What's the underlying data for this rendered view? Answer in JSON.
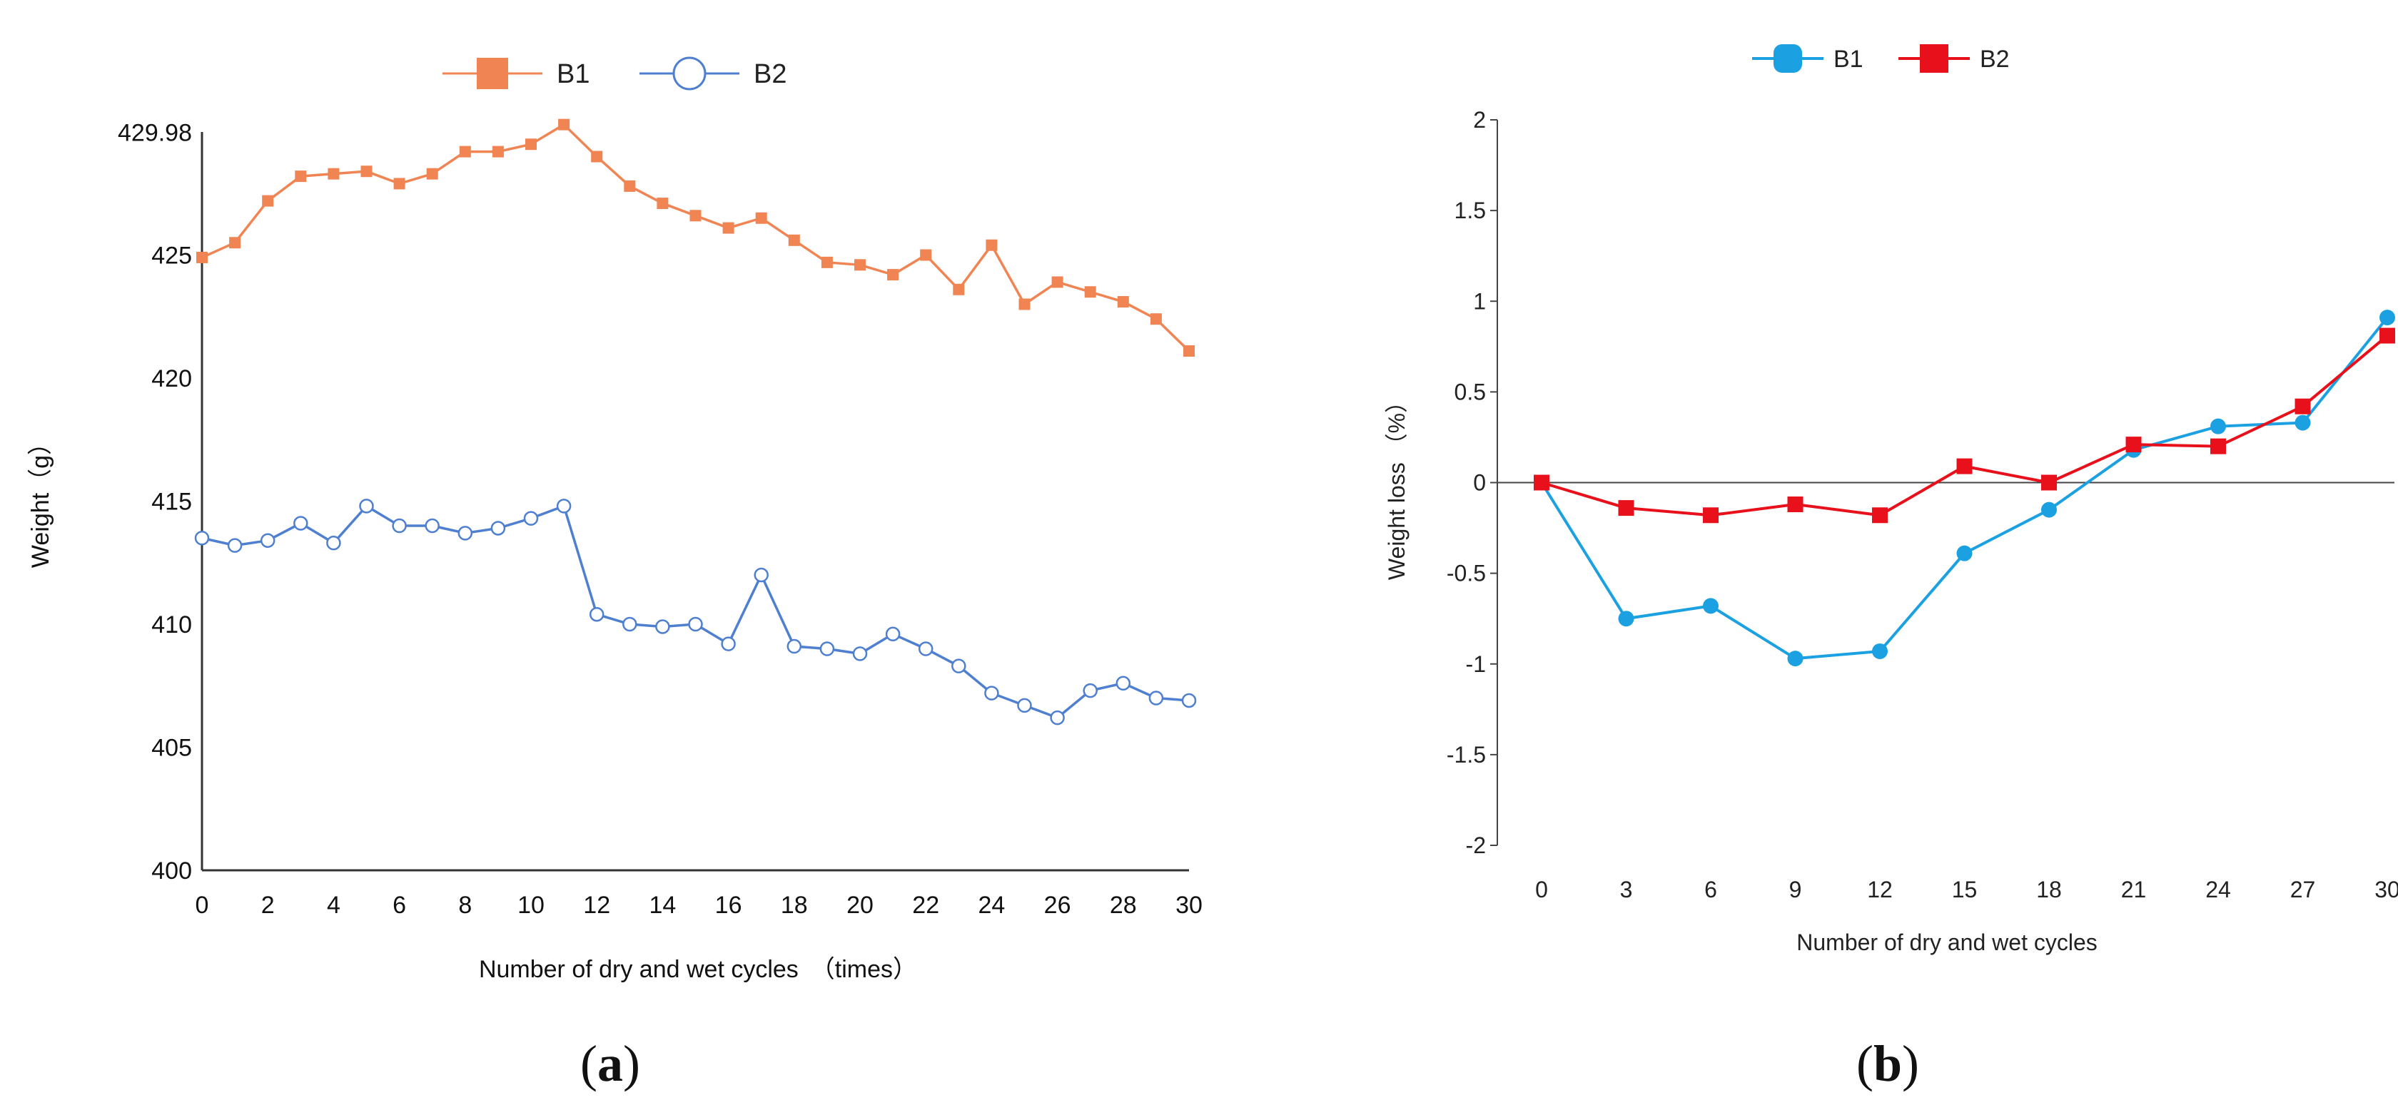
{
  "chart_data": [
    {
      "type": "line",
      "xlabel": "Number of dry and wet cycles　（times）",
      "ylabel": "Weight（g）",
      "xlim": [
        0,
        30
      ],
      "ylim": [
        400,
        430
      ],
      "x_ticks": [
        0,
        2,
        4,
        6,
        8,
        10,
        12,
        14,
        16,
        18,
        20,
        22,
        24,
        26,
        28,
        30
      ],
      "y_ticks": [
        400,
        405,
        410,
        415,
        420,
        425,
        429.98
      ],
      "y_tick_labels": [
        "400",
        "405",
        "410",
        "415",
        "420",
        "425",
        "429.98"
      ],
      "legend_position": "top-center",
      "x": [
        0,
        1,
        2,
        3,
        4,
        5,
        6,
        7,
        8,
        9,
        10,
        11,
        12,
        13,
        14,
        15,
        16,
        17,
        18,
        19,
        20,
        21,
        22,
        23,
        24,
        25,
        26,
        27,
        28,
        29,
        30
      ],
      "series": [
        {
          "name": "B1",
          "color": "#F08453",
          "marker": "square",
          "values": [
            424.9,
            425.5,
            427.2,
            428.2,
            428.3,
            428.4,
            427.9,
            428.3,
            429.2,
            429.2,
            429.5,
            430.3,
            429.0,
            427.8,
            427.1,
            426.6,
            426.1,
            426.5,
            425.6,
            424.7,
            424.6,
            424.2,
            425.0,
            423.6,
            425.4,
            423.0,
            423.9,
            423.5,
            423.1,
            422.4,
            421.1
          ]
        },
        {
          "name": "B2",
          "color": "#4E7FD0",
          "marker": "open-circle",
          "values": [
            413.5,
            413.2,
            413.4,
            414.1,
            413.3,
            414.8,
            414.0,
            414.0,
            413.7,
            413.9,
            414.3,
            414.8,
            410.4,
            410.0,
            409.9,
            410.0,
            409.2,
            412.0,
            409.1,
            409.0,
            408.8,
            409.6,
            409.0,
            408.3,
            407.2,
            406.7,
            406.2,
            407.3,
            407.6,
            407.0,
            406.9
          ]
        }
      ],
      "caption": {
        "open": "(",
        "letter": "a",
        "close": ")"
      }
    },
    {
      "type": "line",
      "xlabel": "Number of dry and wet cycles",
      "ylabel": "Weight loss （%）",
      "ylim": [
        -2,
        2
      ],
      "y_ticks": [
        -2,
        -1.5,
        -1,
        -0.5,
        0,
        0.5,
        1,
        1.5,
        2
      ],
      "y_tick_labels": [
        "-2",
        "-1.5",
        "-1",
        "-0.5",
        "0",
        "0.5",
        "1",
        "1.5",
        "2"
      ],
      "categories": [
        "0",
        "3",
        "6",
        "9",
        "12",
        "15",
        "18",
        "21",
        "24",
        "27",
        "30"
      ],
      "legend_position": "top-center",
      "series": [
        {
          "name": "B1",
          "color": "#1BA1E2",
          "marker": "circle",
          "values": [
            0,
            -0.75,
            -0.68,
            -0.97,
            -0.93,
            -0.39,
            -0.15,
            0.18,
            0.31,
            0.33,
            0.91
          ]
        },
        {
          "name": "B2",
          "color": "#E8101A",
          "marker": "square",
          "values": [
            0,
            -0.14,
            -0.18,
            -0.12,
            -0.18,
            0.09,
            0.0,
            0.21,
            0.2,
            0.42,
            0.81
          ]
        }
      ],
      "caption": {
        "open": "(",
        "letter": "b",
        "close": ")"
      }
    }
  ]
}
